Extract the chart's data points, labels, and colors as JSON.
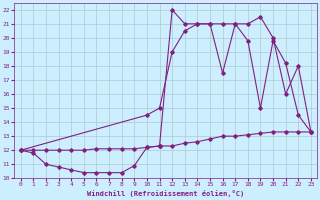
{
  "xlabel": "Windchill (Refroidissement éolien,°C)",
  "bg_color": "#cceeff",
  "grid_color": "#aacccc",
  "line_color": "#802080",
  "xlim": [
    -0.5,
    23.5
  ],
  "ylim": [
    10,
    22.5
  ],
  "xticks": [
    0,
    1,
    2,
    3,
    4,
    5,
    6,
    7,
    8,
    9,
    10,
    11,
    12,
    13,
    14,
    15,
    16,
    17,
    18,
    19,
    20,
    21,
    22,
    23
  ],
  "yticks": [
    10,
    11,
    12,
    13,
    14,
    15,
    16,
    17,
    18,
    19,
    20,
    21,
    22
  ],
  "line1": [
    [
      0,
      12.0
    ],
    [
      1,
      11.8
    ],
    [
      2,
      11.0
    ],
    [
      3,
      10.8
    ],
    [
      4,
      10.6
    ],
    [
      5,
      10.4
    ],
    [
      6,
      10.4
    ],
    [
      7,
      10.4
    ],
    [
      8,
      10.4
    ],
    [
      9,
      10.9
    ],
    [
      10,
      12.2
    ],
    [
      11,
      12.3
    ]
  ],
  "line2": [
    [
      0,
      12.0
    ],
    [
      1,
      12.0
    ],
    [
      2,
      12.0
    ],
    [
      3,
      12.0
    ],
    [
      4,
      12.0
    ],
    [
      5,
      12.0
    ],
    [
      6,
      12.1
    ],
    [
      7,
      12.1
    ],
    [
      8,
      12.1
    ],
    [
      9,
      12.1
    ],
    [
      10,
      12.2
    ],
    [
      11,
      12.3
    ],
    [
      12,
      12.3
    ],
    [
      13,
      12.5
    ],
    [
      14,
      12.6
    ],
    [
      15,
      12.8
    ],
    [
      16,
      13.0
    ],
    [
      17,
      13.0
    ],
    [
      18,
      13.1
    ],
    [
      19,
      13.2
    ],
    [
      20,
      13.3
    ],
    [
      21,
      13.3
    ],
    [
      22,
      13.3
    ],
    [
      23,
      13.3
    ]
  ],
  "line3": [
    [
      11,
      12.3
    ],
    [
      12,
      22.0
    ],
    [
      13,
      21.0
    ],
    [
      14,
      21.0
    ],
    [
      15,
      21.0
    ],
    [
      16,
      21.0
    ],
    [
      17,
      21.0
    ],
    [
      18,
      19.8
    ],
    [
      19,
      15.0
    ],
    [
      20,
      19.8
    ],
    [
      21,
      18.2
    ],
    [
      22,
      14.5
    ],
    [
      23,
      13.3
    ]
  ],
  "line4": [
    [
      0,
      12.0
    ],
    [
      10,
      14.5
    ],
    [
      11,
      15.0
    ],
    [
      12,
      19.0
    ],
    [
      13,
      20.5
    ],
    [
      14,
      21.0
    ],
    [
      15,
      21.0
    ],
    [
      16,
      17.5
    ],
    [
      17,
      21.0
    ],
    [
      18,
      21.0
    ],
    [
      19,
      21.5
    ],
    [
      20,
      20.0
    ],
    [
      21,
      16.0
    ],
    [
      22,
      18.0
    ],
    [
      23,
      13.3
    ]
  ]
}
